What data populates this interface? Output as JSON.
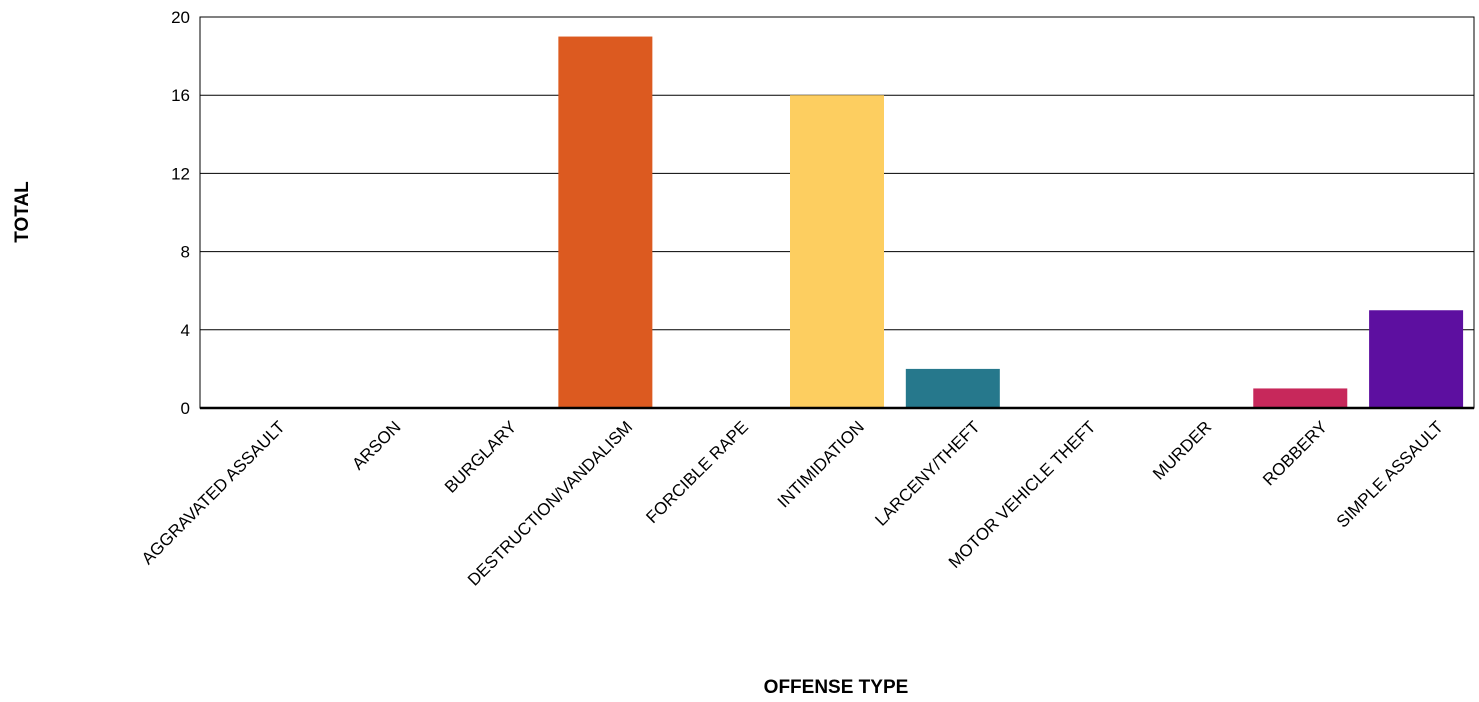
{
  "chart_data": {
    "type": "bar",
    "title": "",
    "xlabel": "OFFENSE TYPE",
    "ylabel": "TOTAL",
    "ylim": [
      0,
      20
    ],
    "yticks": [
      0,
      4,
      8,
      12,
      16,
      20
    ],
    "grid": true,
    "categories": [
      "AGGRAVATED ASSAULT",
      "ARSON",
      "BURGLARY",
      "DESTRUCTION/VANDALISM",
      "FORCIBLE RAPE",
      "INTIMIDATION",
      "LARCENY/THEFT",
      "MOTOR VEHICLE THEFT",
      "MURDER",
      "ROBBERY",
      "SIMPLE ASSAULT"
    ],
    "values": [
      0,
      0,
      0,
      19,
      0,
      16,
      2,
      0,
      0,
      1,
      5
    ],
    "colors": [
      "#e03a3e",
      "#f58220",
      "#f6a81c",
      "#dc5a20",
      "#e8762b",
      "#fdce60",
      "#26788c",
      "#2e8b57",
      "#7a3e9d",
      "#c7285b",
      "#5d0fa0"
    ]
  }
}
